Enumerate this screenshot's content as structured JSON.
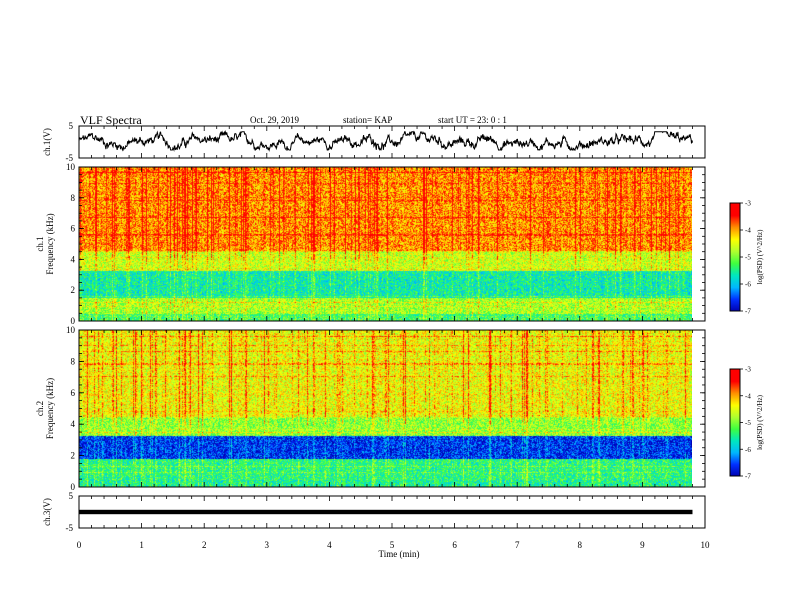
{
  "header": {
    "title": "VLF Spectra",
    "date": "Oct. 29, 2019",
    "station": "station= KAP",
    "start": "start  UT =   23: 0  : 1"
  },
  "colors": {
    "spectrum_scale": [
      "#0000b0",
      "#0030ff",
      "#00b8ff",
      "#00e8c0",
      "#40ff40",
      "#b0ff30",
      "#ffff00",
      "#ff9000",
      "#ff0000",
      "#ff0000",
      "#ffffff"
    ],
    "waveform": "#000000"
  },
  "chart_data": [
    {
      "type": "line",
      "panel": "ch1-waveform",
      "ylabel": "ch.1(V)",
      "ylim": [
        -5,
        5
      ],
      "yticks": [
        "5",
        "-5"
      ],
      "xlim": [
        0,
        10
      ],
      "x_unit": "min",
      "waveform_amplitude_range_V": [
        -2.5,
        3.2
      ]
    },
    {
      "type": "heatmap",
      "panel": "ch1-spectrogram",
      "ylabel": "ch.1\nFrequency (kHz)",
      "ylim": [
        0,
        10
      ],
      "yticks": [
        "0",
        "2",
        "4",
        "6",
        "8",
        "10"
      ],
      "xlim": [
        0,
        9.8
      ],
      "colorbar": {
        "label": "log(PSD) (V^2/Hz)",
        "range": [
          -7,
          -3
        ],
        "ticks": [
          "-3",
          "-4",
          "-5",
          "-6",
          "-7"
        ]
      },
      "band_levels_log_psd": [
        {
          "freq_khz": [
            0,
            0.5
          ],
          "level": -5.3
        },
        {
          "freq_khz": [
            0.5,
            1.5
          ],
          "level": -4.8
        },
        {
          "freq_khz": [
            1.5,
            3.3
          ],
          "level": -5.6
        },
        {
          "freq_khz": [
            3.3,
            4.6
          ],
          "level": -4.6
        },
        {
          "freq_khz": [
            4.6,
            10
          ],
          "level": -3.9
        }
      ]
    },
    {
      "type": "heatmap",
      "panel": "ch2-spectrogram",
      "ylabel": "ch.2\nFrequency (kHz)",
      "ylim": [
        0,
        10
      ],
      "yticks": [
        "0",
        "2",
        "4",
        "6",
        "8",
        "10"
      ],
      "xlim": [
        0,
        9.8
      ],
      "colorbar": {
        "label": "log(PSD) (V^2/Hz)",
        "range": [
          -7,
          -3
        ],
        "ticks": [
          "-3",
          "-4",
          "-5",
          "-6",
          "-7"
        ]
      },
      "band_levels_log_psd": [
        {
          "freq_khz": [
            0,
            0.5
          ],
          "level": -5.5
        },
        {
          "freq_khz": [
            0.5,
            1.8
          ],
          "level": -5.4
        },
        {
          "freq_khz": [
            1.8,
            3.3
          ],
          "level": -6.6
        },
        {
          "freq_khz": [
            3.3,
            4.5
          ],
          "level": -4.9
        },
        {
          "freq_khz": [
            4.5,
            10
          ],
          "level": -4.4
        }
      ]
    },
    {
      "type": "line",
      "panel": "ch3-waveform",
      "ylabel": "ch.3(V)",
      "ylim": [
        -5,
        5
      ],
      "yticks": [
        "5",
        "-5"
      ],
      "xlim": [
        0,
        10
      ],
      "x_unit": "min",
      "constant_value_V": 0
    }
  ],
  "xaxis": {
    "label": "Time (min)",
    "ticks": [
      "0",
      "1",
      "2",
      "3",
      "4",
      "5",
      "6",
      "7",
      "8",
      "9",
      "10"
    ]
  }
}
